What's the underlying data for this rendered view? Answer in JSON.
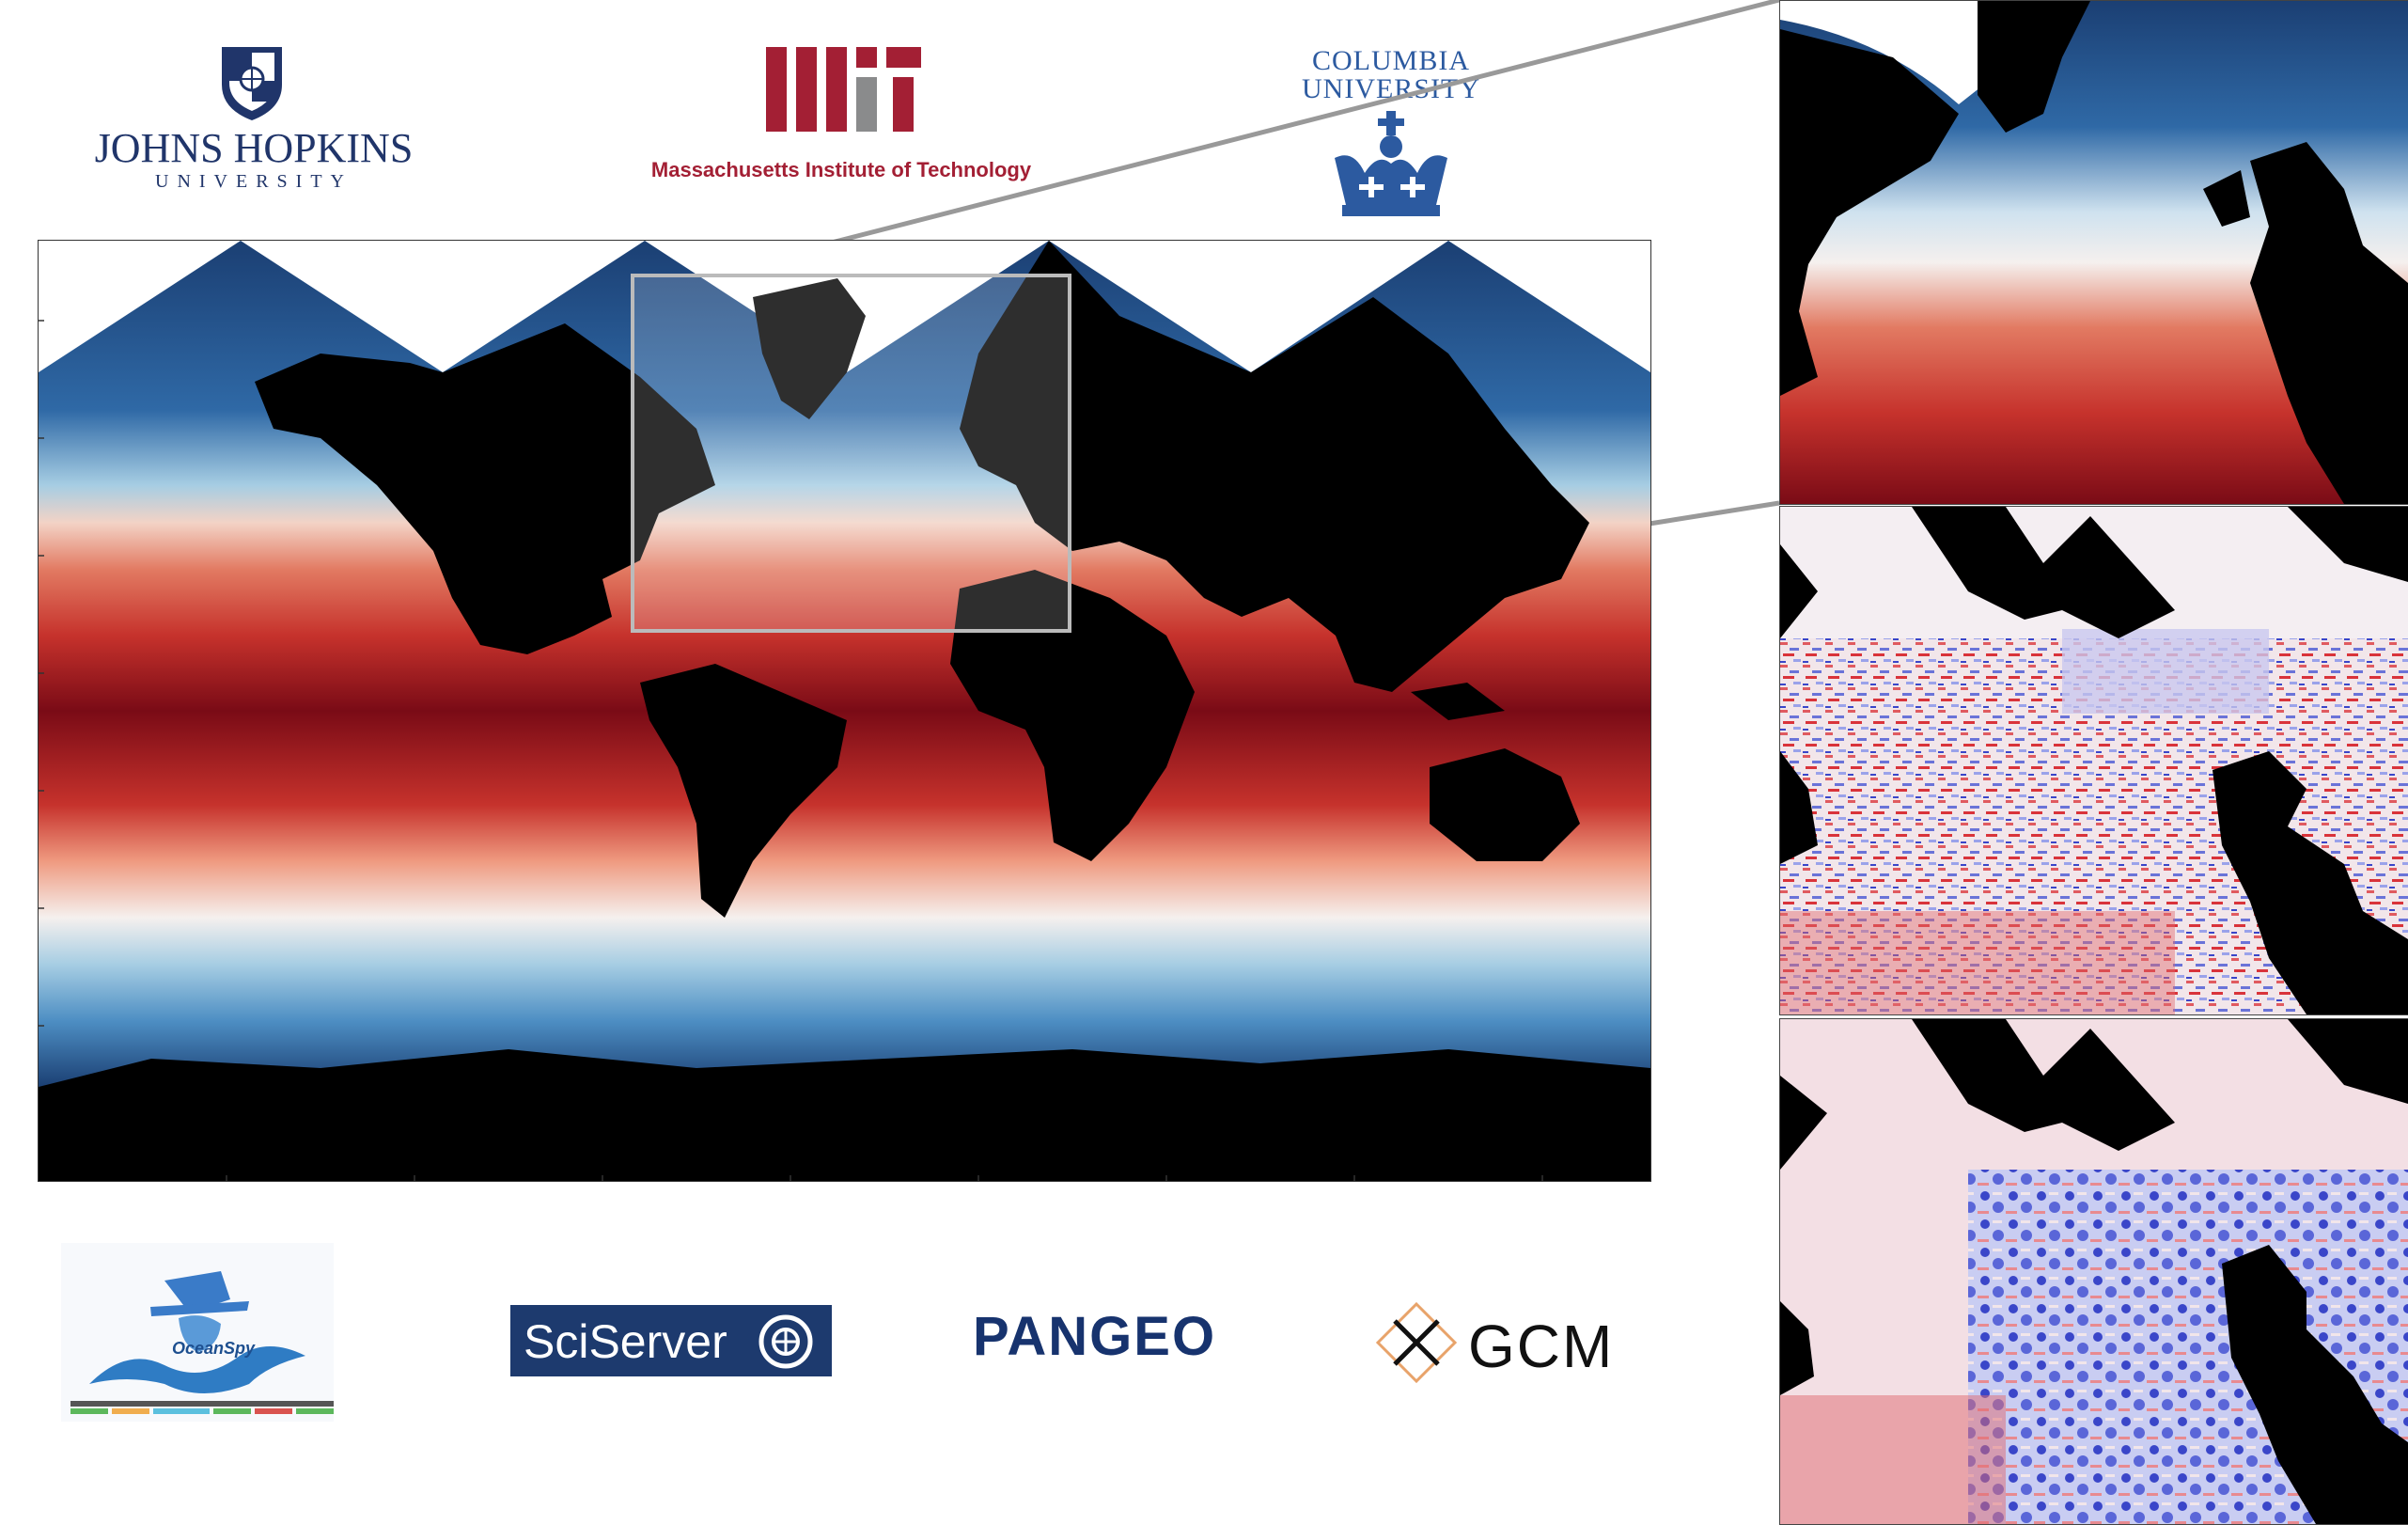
{
  "logos": {
    "jhu": {
      "name": "JOHNS HOPKINS",
      "sub": "UNIVERSITY"
    },
    "mit": {
      "name": "Massachusetts Institute of Technology"
    },
    "columbia": {
      "line1": "COLUMBIA",
      "line2": "UNIVERSITY"
    },
    "sciserver": {
      "name": "SciServer"
    },
    "pangeo": {
      "name": "PANGEO"
    },
    "gcm": {
      "name": "GCM"
    },
    "oceanspy": {
      "name": "OceanSpy"
    }
  },
  "colors": {
    "warm_dark": "#7a0b16",
    "warm": "#c6322c",
    "warm_light": "#f3b59a",
    "neutral": "#f5f0ee",
    "cool_light": "#a6cde3",
    "cool": "#4d8ec3",
    "cool_dark": "#1b3f73",
    "land": "#000000",
    "anomaly_red": "#d9333a",
    "anomaly_blue": "#3a46c9",
    "jhu_blue": "#20356a",
    "mit_red": "#a31f34",
    "mit_gray": "#8a8b8c",
    "columbia_blue": "#2c5aa0",
    "sciserver_bg": "#1d3a6e",
    "pangeo_blue": "#17336e"
  }
}
